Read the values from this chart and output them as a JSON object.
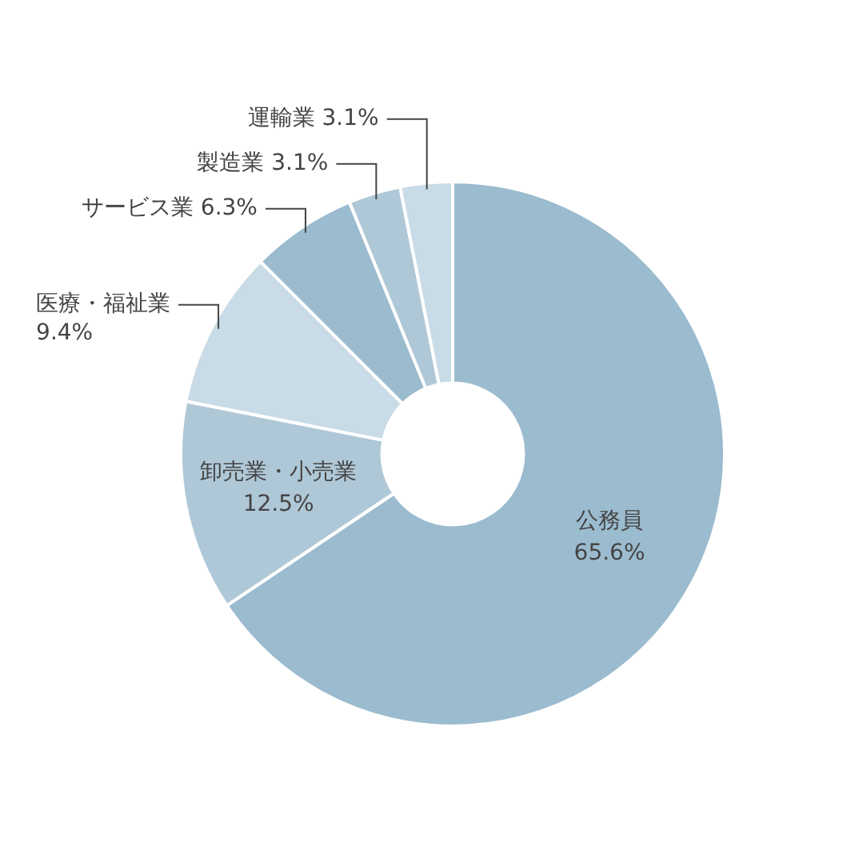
{
  "chart_data": {
    "type": "donut",
    "categories": [
      "公務員",
      "卸売業・小売業",
      "医療・福祉業",
      "サービス業",
      "製造業",
      "運輸業"
    ],
    "values": [
      65.6,
      12.5,
      9.4,
      6.3,
      3.1,
      3.1
    ],
    "value_labels": [
      "65.6%",
      "12.5%",
      "9.4%",
      "6.3%",
      "3.1%",
      "3.1%"
    ],
    "colors": [
      "#9bbbcf",
      "#afc8d7",
      "#c8dbe6",
      "#9bbbcf",
      "#afc8d7",
      "#c8dbe6"
    ],
    "legend": false
  }
}
